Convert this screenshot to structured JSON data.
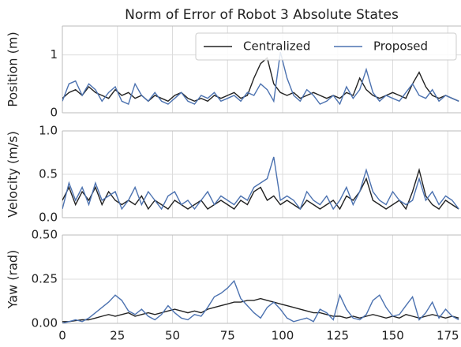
{
  "chart_data": [
    {
      "type": "line",
      "title": "Norm of Error of Robot 3 Absolute States",
      "y_label": "Position (m)",
      "x": [
        0,
        3,
        6,
        9,
        12,
        15,
        18,
        21,
        24,
        27,
        30,
        33,
        36,
        39,
        42,
        45,
        48,
        51,
        54,
        57,
        60,
        63,
        66,
        69,
        72,
        75,
        78,
        81,
        84,
        87,
        90,
        93,
        96,
        99,
        102,
        105,
        108,
        111,
        114,
        117,
        120,
        123,
        126,
        129,
        132,
        135,
        138,
        141,
        144,
        147,
        150,
        153,
        156,
        159,
        162,
        165,
        168,
        171,
        174,
        177,
        180
      ],
      "xlim": [
        0,
        181
      ],
      "xticks": [
        0,
        25,
        50,
        75,
        100,
        125,
        150,
        175
      ],
      "ylim": [
        0,
        1.5
      ],
      "yticks": [
        0,
        1
      ],
      "grid": true,
      "legend": "upper right",
      "series": [
        {
          "name": "Centralized",
          "color": "#222222",
          "values": [
            0.25,
            0.35,
            0.4,
            0.3,
            0.45,
            0.35,
            0.3,
            0.25,
            0.4,
            0.3,
            0.35,
            0.25,
            0.3,
            0.2,
            0.3,
            0.25,
            0.2,
            0.3,
            0.35,
            0.25,
            0.2,
            0.25,
            0.2,
            0.3,
            0.25,
            0.3,
            0.35,
            0.25,
            0.3,
            0.6,
            0.85,
            0.95,
            0.5,
            0.35,
            0.3,
            0.35,
            0.25,
            0.3,
            0.35,
            0.3,
            0.25,
            0.3,
            0.25,
            0.35,
            0.3,
            0.6,
            0.4,
            0.3,
            0.25,
            0.3,
            0.35,
            0.3,
            0.25,
            0.5,
            0.7,
            0.45,
            0.3,
            0.25,
            0.3,
            0.25,
            0.2
          ]
        },
        {
          "name": "Proposed",
          "color": "#4c72b0",
          "values": [
            0.2,
            0.5,
            0.55,
            0.3,
            0.5,
            0.4,
            0.2,
            0.35,
            0.45,
            0.2,
            0.15,
            0.5,
            0.3,
            0.2,
            0.35,
            0.2,
            0.15,
            0.25,
            0.35,
            0.2,
            0.15,
            0.3,
            0.25,
            0.35,
            0.2,
            0.25,
            0.3,
            0.2,
            0.35,
            0.3,
            0.5,
            0.4,
            0.2,
            1.05,
            0.6,
            0.3,
            0.2,
            0.4,
            0.3,
            0.15,
            0.2,
            0.3,
            0.15,
            0.45,
            0.25,
            0.4,
            0.75,
            0.35,
            0.2,
            0.3,
            0.25,
            0.2,
            0.35,
            0.5,
            0.3,
            0.25,
            0.4,
            0.2,
            0.3,
            0.25,
            0.2
          ]
        }
      ]
    },
    {
      "type": "line",
      "y_label": "Velocity (m/s)",
      "x": [
        0,
        3,
        6,
        9,
        12,
        15,
        18,
        21,
        24,
        27,
        30,
        33,
        36,
        39,
        42,
        45,
        48,
        51,
        54,
        57,
        60,
        63,
        66,
        69,
        72,
        75,
        78,
        81,
        84,
        87,
        90,
        93,
        96,
        99,
        102,
        105,
        108,
        111,
        114,
        117,
        120,
        123,
        126,
        129,
        132,
        135,
        138,
        141,
        144,
        147,
        150,
        153,
        156,
        159,
        162,
        165,
        168,
        171,
        174,
        177,
        180
      ],
      "xlim": [
        0,
        181
      ],
      "xticks": [
        0,
        25,
        50,
        75,
        100,
        125,
        150,
        175
      ],
      "ylim": [
        0,
        1
      ],
      "yticks": [
        {
          "value": 0,
          "label": "0.0"
        },
        0.5,
        {
          "value": 1,
          "label": "1.0"
        }
      ],
      "grid": true,
      "series": [
        {
          "name": "Centralized",
          "color": "#222222",
          "values": [
            0.2,
            0.35,
            0.15,
            0.3,
            0.2,
            0.35,
            0.15,
            0.3,
            0.2,
            0.15,
            0.2,
            0.15,
            0.25,
            0.1,
            0.2,
            0.15,
            0.1,
            0.2,
            0.15,
            0.1,
            0.15,
            0.2,
            0.1,
            0.15,
            0.2,
            0.15,
            0.1,
            0.2,
            0.15,
            0.3,
            0.35,
            0.2,
            0.25,
            0.15,
            0.2,
            0.15,
            0.1,
            0.2,
            0.15,
            0.1,
            0.15,
            0.2,
            0.1,
            0.25,
            0.2,
            0.3,
            0.45,
            0.2,
            0.15,
            0.1,
            0.15,
            0.2,
            0.1,
            0.3,
            0.55,
            0.25,
            0.15,
            0.1,
            0.2,
            0.15,
            0.1
          ]
        },
        {
          "name": "Proposed",
          "color": "#4c72b0",
          "values": [
            0.1,
            0.4,
            0.2,
            0.35,
            0.15,
            0.4,
            0.2,
            0.25,
            0.3,
            0.1,
            0.2,
            0.35,
            0.15,
            0.3,
            0.2,
            0.1,
            0.25,
            0.3,
            0.15,
            0.2,
            0.1,
            0.2,
            0.3,
            0.15,
            0.25,
            0.2,
            0.15,
            0.25,
            0.2,
            0.35,
            0.4,
            0.45,
            0.7,
            0.2,
            0.25,
            0.2,
            0.1,
            0.3,
            0.2,
            0.15,
            0.25,
            0.1,
            0.2,
            0.35,
            0.15,
            0.3,
            0.55,
            0.3,
            0.2,
            0.15,
            0.3,
            0.2,
            0.15,
            0.2,
            0.45,
            0.2,
            0.3,
            0.15,
            0.25,
            0.2,
            0.1
          ]
        }
      ]
    },
    {
      "type": "line",
      "y_label": "Yaw (rad)",
      "x": [
        0,
        3,
        6,
        9,
        12,
        15,
        18,
        21,
        24,
        27,
        30,
        33,
        36,
        39,
        42,
        45,
        48,
        51,
        54,
        57,
        60,
        63,
        66,
        69,
        72,
        75,
        78,
        81,
        84,
        87,
        90,
        93,
        96,
        99,
        102,
        105,
        108,
        111,
        114,
        117,
        120,
        123,
        126,
        129,
        132,
        135,
        138,
        141,
        144,
        147,
        150,
        153,
        156,
        159,
        162,
        165,
        168,
        171,
        174,
        177,
        180
      ],
      "xlim": [
        0,
        181
      ],
      "xticks": [
        0,
        25,
        50,
        75,
        100,
        125,
        150,
        175
      ],
      "ylim": [
        0,
        0.5
      ],
      "yticks": [
        {
          "value": 0,
          "label": "0.00"
        },
        0.25,
        {
          "value": 0.5,
          "label": "0.50"
        }
      ],
      "grid": true,
      "series": [
        {
          "name": "Centralized",
          "color": "#222222",
          "values": [
            0.01,
            0.01,
            0.015,
            0.02,
            0.02,
            0.03,
            0.04,
            0.05,
            0.04,
            0.05,
            0.06,
            0.04,
            0.05,
            0.06,
            0.05,
            0.06,
            0.07,
            0.08,
            0.07,
            0.06,
            0.07,
            0.06,
            0.08,
            0.09,
            0.1,
            0.11,
            0.12,
            0.12,
            0.13,
            0.13,
            0.14,
            0.13,
            0.12,
            0.11,
            0.1,
            0.09,
            0.08,
            0.07,
            0.06,
            0.06,
            0.05,
            0.04,
            0.04,
            0.03,
            0.04,
            0.03,
            0.04,
            0.05,
            0.04,
            0.03,
            0.04,
            0.03,
            0.05,
            0.04,
            0.03,
            0.04,
            0.05,
            0.04,
            0.03,
            0.04,
            0.03
          ]
        },
        {
          "name": "Proposed",
          "color": "#4c72b0",
          "values": [
            0.0,
            0.01,
            0.02,
            0.01,
            0.03,
            0.06,
            0.09,
            0.12,
            0.16,
            0.13,
            0.07,
            0.05,
            0.08,
            0.04,
            0.02,
            0.05,
            0.1,
            0.06,
            0.03,
            0.02,
            0.05,
            0.04,
            0.09,
            0.15,
            0.17,
            0.2,
            0.24,
            0.14,
            0.1,
            0.06,
            0.03,
            0.09,
            0.12,
            0.08,
            0.03,
            0.01,
            0.02,
            0.03,
            0.01,
            0.08,
            0.06,
            0.02,
            0.16,
            0.08,
            0.03,
            0.02,
            0.05,
            0.13,
            0.16,
            0.09,
            0.04,
            0.05,
            0.1,
            0.15,
            0.02,
            0.06,
            0.12,
            0.03,
            0.08,
            0.04,
            0.02
          ]
        }
      ]
    }
  ]
}
